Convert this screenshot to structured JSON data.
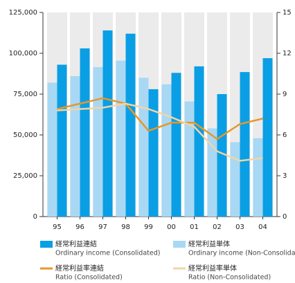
{
  "chart_data": {
    "type": "bar",
    "categories": [
      "95",
      "96",
      "97",
      "98",
      "99",
      "00",
      "01",
      "02",
      "03",
      "04"
    ],
    "series": [
      {
        "name": "経常利益単体",
        "description": "Ordinary income (Non-Consolidated)",
        "type": "bar",
        "color": "#a8d8f4",
        "values": [
          82000,
          86000,
          91500,
          95500,
          85000,
          81000,
          70500,
          54000,
          45500,
          48000
        ]
      },
      {
        "name": "経常利益連結",
        "description": "Ordinary income (Consolidated)",
        "type": "bar",
        "color": "#0a9fe4",
        "values": [
          93000,
          103000,
          114000,
          112000,
          78000,
          88000,
          92000,
          75000,
          88500,
          97000
        ]
      },
      {
        "name": "経常利益率連結",
        "description": "Ratio (Consolidated)",
        "type": "line",
        "axis": "y2",
        "color": "#e8962a",
        "values": [
          7.9,
          8.3,
          8.7,
          8.3,
          6.3,
          6.9,
          6.9,
          5.7,
          6.8,
          7.2
        ]
      },
      {
        "name": "経常利益率単体",
        "description": "Ratio (Non-Consolidated)",
        "type": "line",
        "axis": "y2",
        "color": "#f4d4a4",
        "values": [
          7.8,
          7.9,
          8.0,
          8.3,
          7.9,
          7.3,
          6.6,
          4.8,
          4.1,
          4.3
        ]
      }
    ],
    "ylim": [
      0,
      125000
    ],
    "yticks": [
      0,
      {
        "value": 25000,
        "label": "25,000"
      },
      {
        "value": 50000,
        "label": "50,000"
      },
      {
        "value": 75000,
        "label": "75,000"
      },
      {
        "value": 100000,
        "label": "100,000"
      },
      {
        "value": 125000,
        "label": "125,000"
      }
    ],
    "y2lim": [
      0,
      15
    ],
    "y2ticks": [
      0,
      3,
      6,
      9,
      12,
      15
    ]
  }
}
